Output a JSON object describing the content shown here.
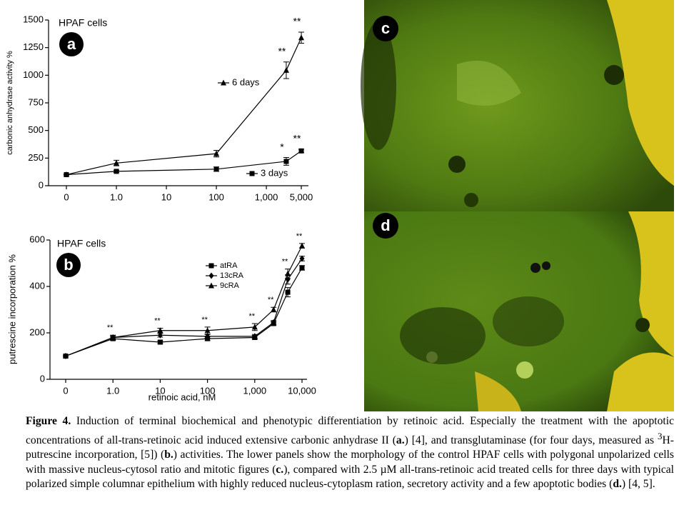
{
  "chart_data": [
    {
      "type": "line",
      "title": "HPAF cells",
      "panel": "a",
      "ylabel": "carbonic anhydrase activity %",
      "x": [
        0,
        1,
        100,
        2500,
        5000
      ],
      "xscale": "log",
      "xlim": [
        0,
        5000
      ],
      "xticks": [
        0,
        {
          "value": 1,
          "label": "1.0"
        },
        10,
        100,
        {
          "value": 1000,
          "label": "1,000"
        },
        {
          "value": 5000,
          "label": "5,000"
        }
      ],
      "ylim": [
        0,
        1500
      ],
      "yticks": [
        0,
        250,
        500,
        750,
        1000,
        1250,
        1500
      ],
      "series": [
        {
          "name": "6 days",
          "color": "#000000",
          "marker": "triangle",
          "values": [
            100,
            205,
            290,
            1045,
            1340
          ],
          "errors": [
            5,
            25,
            30,
            75,
            50
          ],
          "significance": [
            null,
            null,
            null,
            "**",
            "**"
          ]
        },
        {
          "name": "3 days",
          "color": "#000000",
          "marker": "square",
          "values": [
            100,
            130,
            150,
            220,
            315
          ],
          "errors": [
            5,
            10,
            20,
            35,
            15
          ],
          "significance": [
            null,
            null,
            null,
            "*",
            "**"
          ]
        }
      ]
    },
    {
      "type": "line",
      "title": "HPAF cells",
      "panel": "b",
      "ylabel": "putrescine incorporation %",
      "xlabel": "retinoic acid, nM",
      "x": [
        0,
        1,
        10,
        100,
        1000,
        2500,
        5000,
        10000
      ],
      "xscale": "log",
      "xlim": [
        0,
        10000
      ],
      "xticks": [
        0,
        {
          "value": 1,
          "label": "1.0"
        },
        10,
        100,
        {
          "value": 1000,
          "label": "1,000"
        },
        {
          "value": 10000,
          "label": "10,000"
        }
      ],
      "ylim": [
        0,
        600
      ],
      "yticks": [
        0,
        200,
        400,
        600
      ],
      "series": [
        {
          "name": "atRA",
          "color": "#000000",
          "marker": "square",
          "values": [
            100,
            175,
            160,
            175,
            180,
            240,
            375,
            480
          ],
          "errors": [
            3,
            8,
            6,
            8,
            8,
            8,
            20,
            10
          ],
          "significance": [
            null,
            null,
            null,
            null,
            null,
            null,
            null,
            null
          ]
        },
        {
          "name": "13cRA",
          "color": "#000000",
          "marker": "diamond",
          "values": [
            100,
            180,
            190,
            185,
            185,
            245,
            430,
            520
          ],
          "errors": [
            3,
            8,
            8,
            8,
            8,
            8,
            20,
            10
          ],
          "significance": [
            null,
            null,
            null,
            null,
            null,
            null,
            null,
            null
          ]
        },
        {
          "name": "9cRA",
          "color": "#000000",
          "marker": "triangle",
          "values": [
            100,
            180,
            210,
            210,
            225,
            300,
            455,
            575
          ],
          "errors": [
            3,
            10,
            10,
            15,
            15,
            10,
            20,
            10
          ],
          "significance": [
            null,
            "**",
            "**",
            "**",
            "**",
            "**",
            "**",
            "**"
          ]
        }
      ]
    }
  ],
  "images": [
    {
      "panel": "c"
    },
    {
      "panel": "d"
    }
  ],
  "caption": {
    "parts": [
      "Figure 4.",
      " Induction of terminal biochemical and phenotypic differentiation by retinoic acid. Especially the treatment with the apoptotic concentrations of all-trans-retinoic acid induced extensive carbonic anhydrase II (",
      "a.",
      ") [4], and transglutaminase (for four days, measured as ",
      "3",
      "H-putrescine incorporation, [5]) (",
      "b.",
      ") activities. The lower panels show the morphology of the control HPAF cells with polygonal unpolarized cells with massive nucleus-cytosol ratio and mitotic figures (",
      "c.",
      "), compared with 2.5 µM all-trans-retinoic acid treated cells for three days with typical polarized simple columnar epithelium with highly reduced nucleus-cytoplasm ration, secretory activity and a few apoptotic bodies (",
      "d.",
      ") [4, 5]."
    ]
  }
}
